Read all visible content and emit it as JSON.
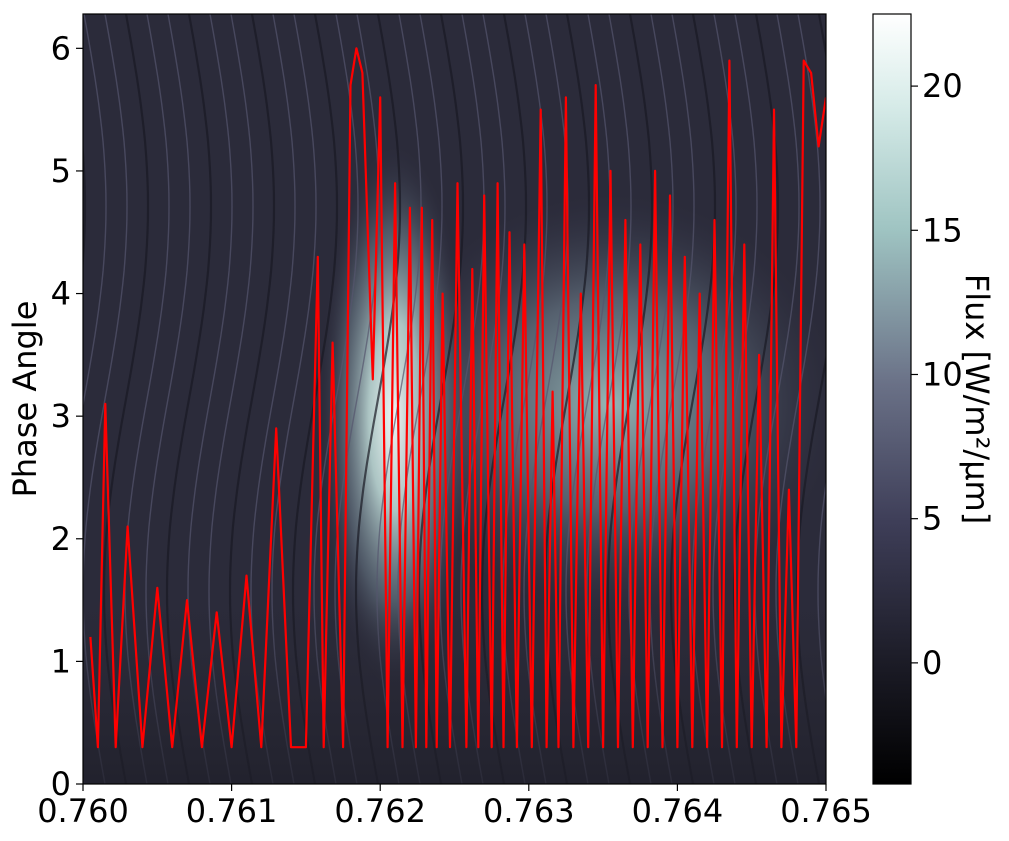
{
  "chart_data": {
    "type": "heatmap",
    "title": "",
    "xlabel": "",
    "ylabel": "Phase Angle",
    "colorbar_label": "Flux [W/m²/μm]",
    "xlim": [
      0.76,
      0.765
    ],
    "ylim": [
      0,
      6.28
    ],
    "x_ticks": [
      "0.760",
      "0.761",
      "0.762",
      "0.763",
      "0.764",
      "0.765"
    ],
    "y_ticks": [
      "0",
      "1",
      "2",
      "3",
      "4",
      "5",
      "6"
    ],
    "colorbar": {
      "range": [
        -4.2,
        22.5
      ],
      "ticks": [
        "0",
        "5",
        "10",
        "15",
        "20"
      ],
      "tick_values": [
        0,
        5,
        10,
        15,
        20
      ],
      "colormap": "bone"
    },
    "colors": {
      "background_dark": "#262633",
      "bright": "#eef7f5",
      "overlay_line": "#ff0000"
    },
    "heatmap_features": {
      "brightest_region": {
        "x": 0.7621,
        "phase": 3.0,
        "flux": 22
      },
      "secondary_bright_band": {
        "x_range": [
          0.7623,
          0.7648
        ],
        "phase": 3.1,
        "flux": 14
      },
      "absorption_lines_sinusoidal": true
    },
    "overlay_series": {
      "name": "",
      "color": "#ff0000",
      "x": [
        0.76005,
        0.7601,
        0.76015,
        0.76022,
        0.7603,
        0.7604,
        0.7605,
        0.7606,
        0.7607,
        0.7608,
        0.7609,
        0.761,
        0.7611,
        0.7612,
        0.7613,
        0.7614,
        0.7615,
        0.76158,
        0.76162,
        0.76168,
        0.76175,
        0.7618,
        0.76184,
        0.76188,
        0.76195,
        0.762,
        0.76205,
        0.7621,
        0.76215,
        0.7622,
        0.76224,
        0.76228,
        0.76231,
        0.76235,
        0.76238,
        0.76242,
        0.76247,
        0.76252,
        0.76258,
        0.76262,
        0.76266,
        0.7627,
        0.76275,
        0.76279,
        0.76283,
        0.76287,
        0.76292,
        0.76297,
        0.76302,
        0.76308,
        0.76312,
        0.76316,
        0.7632,
        0.76325,
        0.7633,
        0.76335,
        0.7634,
        0.76345,
        0.7635,
        0.76355,
        0.7636,
        0.76365,
        0.7637,
        0.76375,
        0.7638,
        0.76385,
        0.7639,
        0.76395,
        0.764,
        0.76405,
        0.7641,
        0.76415,
        0.7642,
        0.76425,
        0.7643,
        0.76435,
        0.7644,
        0.76445,
        0.7645,
        0.76455,
        0.7646,
        0.76465,
        0.7647,
        0.76475,
        0.7648,
        0.76485,
        0.7649,
        0.76495,
        0.765
      ],
      "y": [
        1.2,
        0.3,
        3.1,
        0.3,
        2.1,
        0.3,
        1.6,
        0.3,
        1.5,
        0.3,
        1.4,
        0.3,
        1.7,
        0.3,
        2.9,
        0.3,
        0.3,
        4.3,
        0.3,
        3.6,
        0.3,
        5.7,
        6.0,
        5.8,
        3.3,
        5.6,
        0.3,
        4.9,
        0.3,
        4.7,
        0.3,
        4.7,
        0.3,
        4.6,
        0.3,
        4.0,
        0.3,
        4.9,
        0.3,
        4.2,
        0.3,
        4.8,
        0.3,
        4.9,
        0.3,
        4.5,
        0.3,
        4.4,
        0.3,
        5.5,
        0.3,
        3.2,
        0.3,
        5.6,
        0.3,
        4.0,
        0.3,
        5.7,
        0.3,
        5.0,
        0.3,
        4.6,
        0.3,
        4.4,
        0.3,
        5.0,
        0.3,
        4.8,
        0.3,
        4.3,
        0.3,
        4.0,
        0.3,
        4.6,
        0.3,
        5.9,
        0.3,
        4.4,
        0.3,
        3.5,
        0.3,
        5.5,
        0.3,
        2.4,
        0.3,
        5.9,
        5.8,
        5.2,
        5.6
      ]
    }
  }
}
